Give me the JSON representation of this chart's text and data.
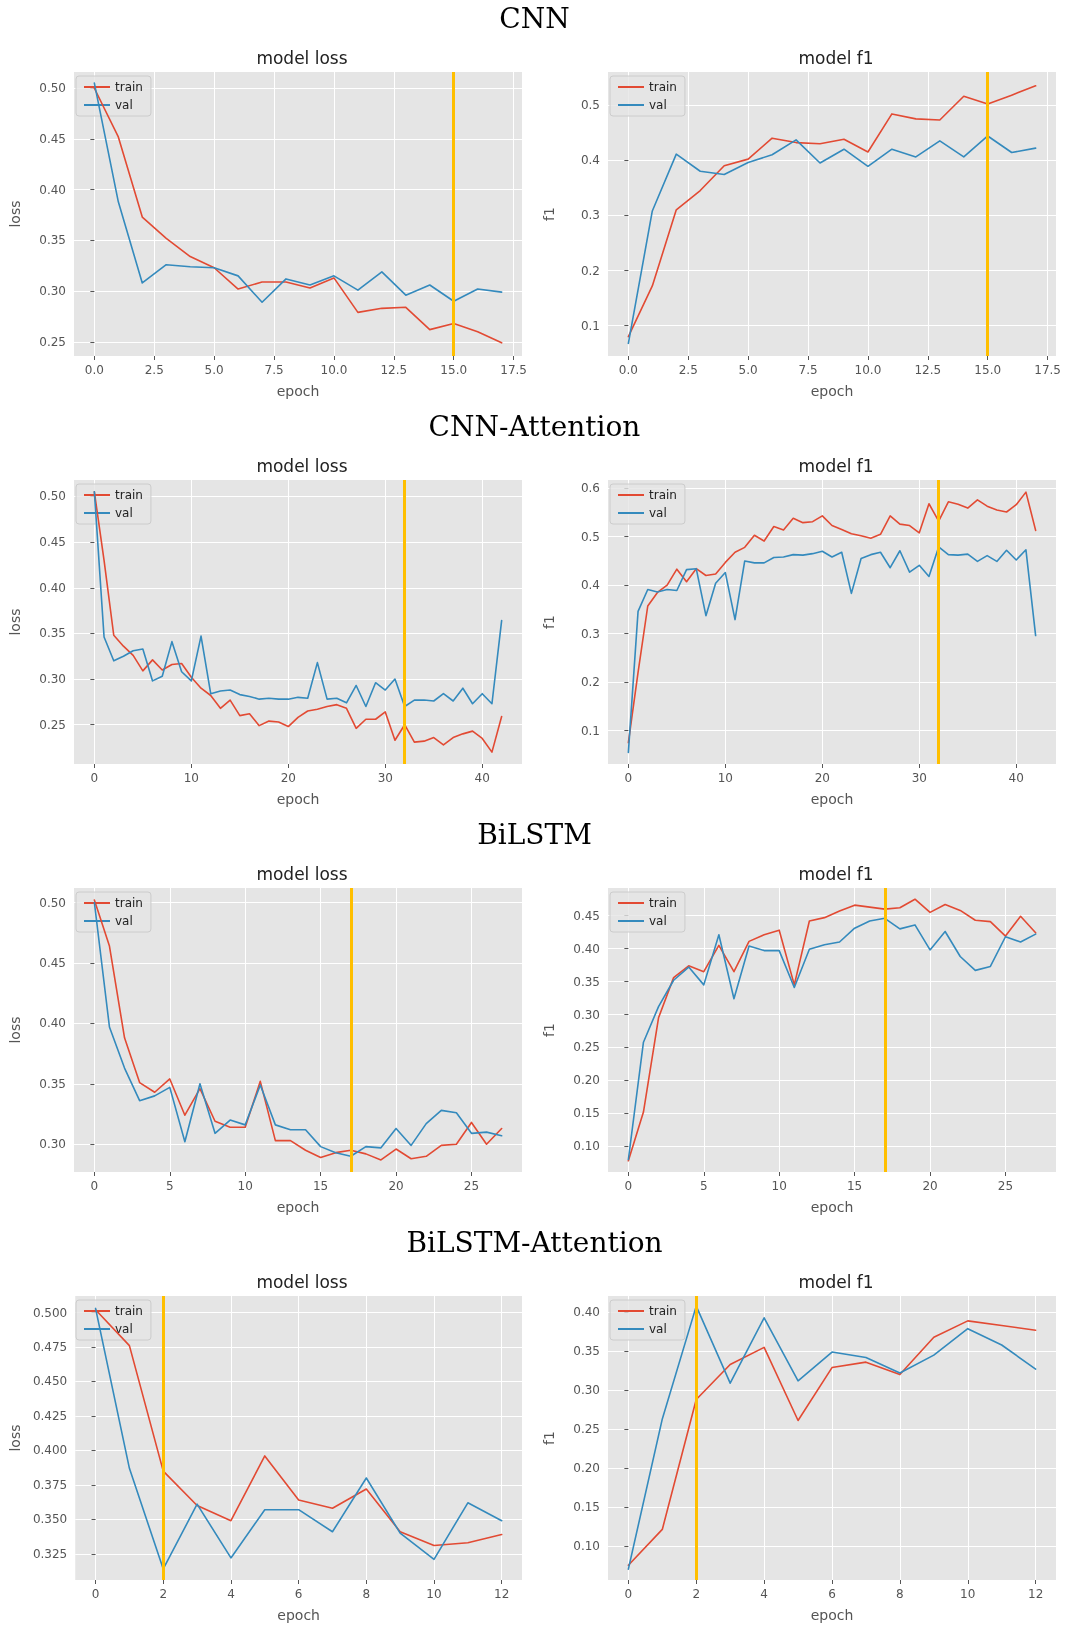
{
  "chart_data": [
    {
      "type": "line",
      "title": "model loss",
      "xlabel": "epoch",
      "ylabel": "loss",
      "annotations": [
        "CNN"
      ],
      "legend": "top left",
      "grid": true,
      "marker": "none",
      "line_style": "solid",
      "x": [
        0,
        1,
        2,
        3,
        4,
        5,
        6,
        7,
        8,
        9,
        10,
        11,
        12,
        13,
        14,
        15,
        16,
        17
      ],
      "xlim": [
        -0.85,
        17.85
      ],
      "xticks": [
        {
          "value": 0,
          "label": "0.0"
        },
        2.5,
        {
          "value": 5,
          "label": "5.0"
        },
        7.5,
        {
          "value": 10,
          "label": "10.0"
        },
        12.5,
        {
          "value": 15,
          "label": "15.0"
        },
        17.5
      ],
      "ylim": [
        0.236,
        0.516
      ],
      "yticks": [
        0.25,
        {
          "value": 0.3,
          "label": "0.30"
        },
        0.35,
        {
          "value": 0.4,
          "label": "0.40"
        },
        0.45,
        {
          "value": 0.5,
          "label": "0.50"
        }
      ],
      "ref_lines": [
        {
          "axis": "x",
          "value": 15,
          "color": "#ffbf00"
        }
      ],
      "series": [
        {
          "name": "train",
          "color": "#e24a33",
          "values": [
            0.5,
            0.452,
            0.373,
            0.352,
            0.334,
            0.323,
            0.302,
            0.309,
            0.309,
            0.303,
            0.313,
            0.279,
            0.283,
            0.284,
            0.262,
            0.268,
            0.26,
            0.249
          ]
        },
        {
          "name": "val",
          "color": "#348abd",
          "values": [
            0.505,
            0.388,
            0.308,
            0.326,
            0.324,
            0.323,
            0.315,
            0.289,
            0.312,
            0.306,
            0.315,
            0.301,
            0.319,
            0.296,
            0.306,
            0.29,
            0.302,
            0.299
          ]
        }
      ]
    },
    {
      "type": "line",
      "title": "model f1",
      "xlabel": "epoch",
      "ylabel": "f1",
      "legend": "top left",
      "grid": true,
      "marker": "none",
      "line_style": "solid",
      "x": [
        0,
        1,
        2,
        3,
        4,
        5,
        6,
        7,
        8,
        9,
        10,
        11,
        12,
        13,
        14,
        15,
        16,
        17
      ],
      "xlim": [
        -0.85,
        17.85
      ],
      "xticks": [
        {
          "value": 0,
          "label": "0.0"
        },
        2.5,
        {
          "value": 5,
          "label": "5.0"
        },
        7.5,
        {
          "value": 10,
          "label": "10.0"
        },
        12.5,
        {
          "value": 15,
          "label": "15.0"
        },
        17.5
      ],
      "ylim": [
        0.045,
        0.56
      ],
      "yticks": [
        0.1,
        0.2,
        0.3,
        0.4,
        0.5
      ],
      "ref_lines": [
        {
          "axis": "x",
          "value": 15,
          "color": "#ffbf00"
        }
      ],
      "series": [
        {
          "name": "train",
          "color": "#e24a33",
          "values": [
            0.08,
            0.172,
            0.31,
            0.345,
            0.39,
            0.402,
            0.44,
            0.432,
            0.43,
            0.438,
            0.415,
            0.484,
            0.475,
            0.473,
            0.516,
            0.502,
            0.518,
            0.535
          ]
        },
        {
          "name": "val",
          "color": "#348abd",
          "values": [
            0.068,
            0.308,
            0.411,
            0.38,
            0.374,
            0.396,
            0.41,
            0.437,
            0.395,
            0.42,
            0.389,
            0.42,
            0.406,
            0.435,
            0.406,
            0.444,
            0.414,
            0.422
          ]
        }
      ]
    },
    {
      "type": "line",
      "title": "model loss",
      "xlabel": "epoch",
      "ylabel": "loss",
      "annotations": [
        "CNN-Attention"
      ],
      "legend": "top left",
      "grid": true,
      "marker": "none",
      "line_style": "solid",
      "x": [
        0,
        1,
        2,
        3,
        4,
        5,
        6,
        7,
        8,
        9,
        10,
        11,
        12,
        13,
        14,
        15,
        16,
        17,
        18,
        19,
        20,
        21,
        22,
        23,
        24,
        25,
        26,
        27,
        28,
        29,
        30,
        31,
        32,
        33,
        34,
        35,
        36,
        37,
        38,
        39,
        40,
        41,
        42
      ],
      "xlim": [
        -2.1,
        44.1
      ],
      "xticks": [
        0,
        10,
        20,
        30,
        40
      ],
      "ylim": [
        0.207,
        0.518
      ],
      "yticks": [
        0.25,
        {
          "value": 0.3,
          "label": "0.30"
        },
        0.35,
        {
          "value": 0.4,
          "label": "0.40"
        },
        0.45,
        {
          "value": 0.5,
          "label": "0.50"
        }
      ],
      "ref_lines": [
        {
          "axis": "x",
          "value": 32,
          "color": "#ffbf00"
        }
      ],
      "series": [
        {
          "name": "train",
          "color": "#e24a33",
          "values": [
            0.505,
            0.43,
            0.348,
            0.336,
            0.326,
            0.309,
            0.321,
            0.31,
            0.316,
            0.317,
            0.302,
            0.29,
            0.282,
            0.268,
            0.277,
            0.26,
            0.262,
            0.249,
            0.254,
            0.253,
            0.248,
            0.258,
            0.265,
            0.267,
            0.27,
            0.272,
            0.268,
            0.246,
            0.256,
            0.256,
            0.264,
            0.233,
            0.25,
            0.231,
            0.232,
            0.236,
            0.228,
            0.236,
            0.24,
            0.243,
            0.235,
            0.22,
            0.259
          ]
        },
        {
          "name": "val",
          "color": "#348abd",
          "values": [
            0.505,
            0.346,
            0.32,
            0.325,
            0.331,
            0.333,
            0.298,
            0.303,
            0.341,
            0.308,
            0.298,
            0.347,
            0.284,
            0.287,
            0.288,
            0.283,
            0.281,
            0.278,
            0.279,
            0.278,
            0.278,
            0.28,
            0.279,
            0.318,
            0.278,
            0.279,
            0.274,
            0.293,
            0.27,
            0.296,
            0.288,
            0.3,
            0.27,
            0.277,
            0.277,
            0.276,
            0.284,
            0.276,
            0.29,
            0.273,
            0.284,
            0.273,
            0.364
          ]
        }
      ]
    },
    {
      "type": "line",
      "title": "model f1",
      "xlabel": "epoch",
      "ylabel": "f1",
      "legend": "top left",
      "grid": true,
      "marker": "none",
      "line_style": "solid",
      "x": [
        0,
        1,
        2,
        3,
        4,
        5,
        6,
        7,
        8,
        9,
        10,
        11,
        12,
        13,
        14,
        15,
        16,
        17,
        18,
        19,
        20,
        21,
        22,
        23,
        24,
        25,
        26,
        27,
        28,
        29,
        30,
        31,
        32,
        33,
        34,
        35,
        36,
        37,
        38,
        39,
        40,
        41,
        42
      ],
      "xlim": [
        -2.1,
        44.1
      ],
      "xticks": [
        0,
        10,
        20,
        30,
        40
      ],
      "ylim": [
        0.031,
        0.617
      ],
      "yticks": [
        0.1,
        0.2,
        0.3,
        0.4,
        0.5,
        0.6
      ],
      "ref_lines": [
        {
          "axis": "x",
          "value": 32,
          "color": "#ffbf00"
        }
      ],
      "series": [
        {
          "name": "train",
          "color": "#e24a33",
          "values": [
            0.075,
            0.22,
            0.357,
            0.385,
            0.4,
            0.433,
            0.407,
            0.434,
            0.42,
            0.423,
            0.447,
            0.468,
            0.478,
            0.503,
            0.491,
            0.521,
            0.514,
            0.538,
            0.529,
            0.531,
            0.543,
            0.523,
            0.515,
            0.506,
            0.502,
            0.497,
            0.505,
            0.543,
            0.526,
            0.523,
            0.508,
            0.568,
            0.532,
            0.572,
            0.567,
            0.559,
            0.576,
            0.563,
            0.555,
            0.551,
            0.566,
            0.592,
            0.513
          ]
        },
        {
          "name": "val",
          "color": "#348abd",
          "values": [
            0.055,
            0.346,
            0.391,
            0.386,
            0.391,
            0.389,
            0.432,
            0.434,
            0.337,
            0.404,
            0.426,
            0.329,
            0.45,
            0.446,
            0.446,
            0.457,
            0.458,
            0.463,
            0.462,
            0.465,
            0.47,
            0.458,
            0.468,
            0.383,
            0.455,
            0.463,
            0.468,
            0.436,
            0.471,
            0.427,
            0.441,
            0.418,
            0.479,
            0.463,
            0.462,
            0.464,
            0.449,
            0.461,
            0.449,
            0.472,
            0.452,
            0.473,
            0.296
          ]
        }
      ]
    },
    {
      "type": "line",
      "title": "model loss",
      "xlabel": "epoch",
      "ylabel": "loss",
      "annotations": [
        "BiLSTM"
      ],
      "legend": "top left",
      "grid": true,
      "marker": "none",
      "line_style": "solid",
      "x": [
        0,
        1,
        2,
        3,
        4,
        5,
        6,
        7,
        8,
        9,
        10,
        11,
        12,
        13,
        14,
        15,
        16,
        17,
        18,
        19,
        20,
        21,
        22,
        23,
        24,
        25,
        26,
        27
      ],
      "xlim": [
        -1.35,
        28.35
      ],
      "xticks": [
        0,
        5,
        10,
        15,
        20,
        25
      ],
      "ylim": [
        0.277,
        0.512
      ],
      "yticks": [
        {
          "value": 0.3,
          "label": "0.30"
        },
        0.35,
        {
          "value": 0.4,
          "label": "0.40"
        },
        0.45,
        {
          "value": 0.5,
          "label": "0.50"
        }
      ],
      "ref_lines": [
        {
          "axis": "x",
          "value": 17,
          "color": "#ffbf00"
        }
      ],
      "series": [
        {
          "name": "train",
          "color": "#e24a33",
          "values": [
            0.502,
            0.464,
            0.388,
            0.351,
            0.343,
            0.354,
            0.324,
            0.346,
            0.319,
            0.314,
            0.314,
            0.352,
            0.303,
            0.303,
            0.295,
            0.289,
            0.293,
            0.295,
            0.292,
            0.287,
            0.296,
            0.288,
            0.29,
            0.299,
            0.3,
            0.318,
            0.3,
            0.313
          ]
        },
        {
          "name": "val",
          "color": "#348abd",
          "values": [
            0.5,
            0.397,
            0.363,
            0.336,
            0.34,
            0.347,
            0.302,
            0.35,
            0.309,
            0.32,
            0.316,
            0.349,
            0.316,
            0.312,
            0.312,
            0.298,
            0.293,
            0.29,
            0.298,
            0.297,
            0.313,
            0.299,
            0.317,
            0.328,
            0.326,
            0.309,
            0.31,
            0.307
          ]
        }
      ]
    },
    {
      "type": "line",
      "title": "model f1",
      "xlabel": "epoch",
      "ylabel": "f1",
      "legend": "top left",
      "grid": true,
      "marker": "none",
      "line_style": "solid",
      "x": [
        0,
        1,
        2,
        3,
        4,
        5,
        6,
        7,
        8,
        9,
        10,
        11,
        12,
        13,
        14,
        15,
        16,
        17,
        18,
        19,
        20,
        21,
        22,
        23,
        24,
        25,
        26,
        27
      ],
      "xlim": [
        -1.35,
        28.35
      ],
      "xticks": [
        0,
        5,
        10,
        15,
        20,
        25
      ],
      "ylim": [
        0.061,
        0.492
      ],
      "yticks": [
        {
          "value": 0.1,
          "label": "0.10"
        },
        0.15,
        {
          "value": 0.2,
          "label": "0.20"
        },
        0.25,
        {
          "value": 0.3,
          "label": "0.30"
        },
        0.35,
        {
          "value": 0.4,
          "label": "0.40"
        },
        0.45
      ],
      "ref_lines": [
        {
          "axis": "x",
          "value": 17,
          "color": "#ffbf00"
        }
      ],
      "series": [
        {
          "name": "train",
          "color": "#e24a33",
          "values": [
            0.078,
            0.152,
            0.295,
            0.356,
            0.374,
            0.365,
            0.405,
            0.365,
            0.411,
            0.421,
            0.428,
            0.345,
            0.442,
            0.447,
            0.457,
            0.466,
            0.463,
            0.46,
            0.462,
            0.475,
            0.455,
            0.467,
            0.458,
            0.443,
            0.441,
            0.419,
            0.449,
            0.424
          ]
        },
        {
          "name": "val",
          "color": "#348abd",
          "values": [
            0.08,
            0.258,
            0.312,
            0.352,
            0.372,
            0.345,
            0.421,
            0.324,
            0.404,
            0.397,
            0.397,
            0.341,
            0.399,
            0.406,
            0.41,
            0.431,
            0.442,
            0.446,
            0.43,
            0.436,
            0.398,
            0.426,
            0.388,
            0.367,
            0.373,
            0.418,
            0.41,
            0.422
          ]
        }
      ]
    },
    {
      "type": "line",
      "title": "model loss",
      "xlabel": "epoch",
      "ylabel": "loss",
      "annotations": [
        "BiLSTM-Attention"
      ],
      "legend": "top left",
      "grid": true,
      "marker": "none",
      "line_style": "solid",
      "x": [
        0,
        1,
        2,
        3,
        4,
        5,
        6,
        7,
        8,
        9,
        10,
        11,
        12
      ],
      "xlim": [
        -0.6,
        12.6
      ],
      "xticks": [
        0,
        2,
        4,
        6,
        8,
        10,
        12
      ],
      "ylim": [
        0.306,
        0.512
      ],
      "yticks": [
        0.325,
        {
          "value": 0.35,
          "label": "0.350"
        },
        0.375,
        {
          "value": 0.4,
          "label": "0.400"
        },
        0.425,
        {
          "value": 0.45,
          "label": "0.450"
        },
        0.475,
        {
          "value": 0.5,
          "label": "0.500"
        }
      ],
      "ref_lines": [
        {
          "axis": "x",
          "value": 2,
          "color": "#ffbf00"
        }
      ],
      "series": [
        {
          "name": "train",
          "color": "#e24a33",
          "values": [
            0.502,
            0.476,
            0.385,
            0.36,
            0.349,
            0.396,
            0.364,
            0.358,
            0.372,
            0.341,
            0.331,
            0.333,
            0.339
          ]
        },
        {
          "name": "val",
          "color": "#348abd",
          "values": [
            0.503,
            0.387,
            0.314,
            0.361,
            0.322,
            0.357,
            0.357,
            0.341,
            0.38,
            0.34,
            0.321,
            0.362,
            0.349
          ]
        }
      ]
    },
    {
      "type": "line",
      "title": "model f1",
      "xlabel": "epoch",
      "ylabel": "f1",
      "legend": "top left",
      "grid": true,
      "marker": "none",
      "line_style": "solid",
      "x": [
        0,
        1,
        2,
        3,
        4,
        5,
        6,
        7,
        8,
        9,
        10,
        11,
        12
      ],
      "xlim": [
        -0.6,
        12.6
      ],
      "xticks": [
        0,
        2,
        4,
        6,
        8,
        10,
        12
      ],
      "ylim": [
        0.056,
        0.421
      ],
      "yticks": [
        {
          "value": 0.1,
          "label": "0.10"
        },
        0.15,
        {
          "value": 0.2,
          "label": "0.20"
        },
        0.25,
        {
          "value": 0.3,
          "label": "0.30"
        },
        0.35,
        {
          "value": 0.4,
          "label": "0.40"
        }
      ],
      "ref_lines": [
        {
          "axis": "x",
          "value": 2,
          "color": "#ffbf00"
        }
      ],
      "series": [
        {
          "name": "train",
          "color": "#e24a33",
          "values": [
            0.075,
            0.121,
            0.288,
            0.333,
            0.355,
            0.261,
            0.329,
            0.336,
            0.32,
            0.368,
            0.389,
            0.383,
            0.377
          ]
        },
        {
          "name": "val",
          "color": "#348abd",
          "values": [
            0.07,
            0.263,
            0.408,
            0.309,
            0.393,
            0.312,
            0.349,
            0.342,
            0.322,
            0.345,
            0.379,
            0.358,
            0.327
          ]
        }
      ]
    }
  ]
}
